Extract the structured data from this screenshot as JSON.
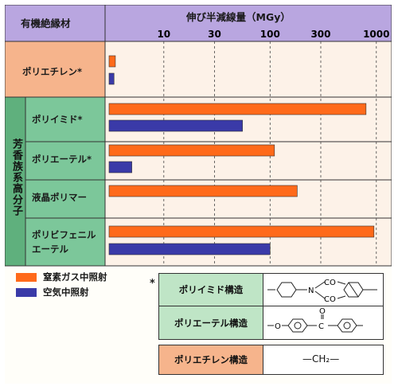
{
  "header": {
    "material_col": "有機絶縁材",
    "axis_title": "伸び半減線量（MGy）"
  },
  "group_label": "芳香族系高分子",
  "materials": [
    {
      "label": "ポリエチレン*"
    },
    {
      "label": "ポリイミド*"
    },
    {
      "label": "ポリエーテル*"
    },
    {
      "label": "液晶ポリマー"
    },
    {
      "label_lines": [
        "ポリビフェニル",
        "エーテル"
      ]
    }
  ],
  "legend": {
    "nitrogen": "窒素ガス中照射",
    "air": "空気中照射"
  },
  "footnote_mark": "*",
  "structures": [
    {
      "label": "ポリイミド構造",
      "formula_labels": [
        "N",
        "CO",
        "CO"
      ]
    },
    {
      "label": "ポリエーテル構造",
      "formula_labels": [
        "O",
        "C",
        "O"
      ]
    },
    {
      "label": "ポリエチレン構造",
      "formula": "—CH₂—"
    }
  ],
  "colors": {
    "nitrogen": "#ff6a1a",
    "air": "#3a3aa8",
    "header_bg": "#b9a6e0",
    "pe_bg": "#f6b48c",
    "aromatic_bg": "#7cc79a",
    "chart_bg": "#fdf2e8",
    "struct_pink": "#f6b48c",
    "struct_green": "#bfe5c6"
  },
  "chart_data": {
    "type": "bar",
    "orientation": "horizontal",
    "x_scale": "log",
    "xlim": [
      3,
      1300
    ],
    "x_ticks": [
      10,
      30,
      100,
      300,
      1000
    ],
    "x_tick_labels": [
      "10",
      "30",
      "100",
      "300",
      "1000"
    ],
    "xlabel": "伸び半減線量（MGy）",
    "categories": [
      "ポリエチレン*",
      "ポリイミド*",
      "ポリエーテル*",
      "液晶ポリマー",
      "ポリビフェニルエーテル"
    ],
    "series": [
      {
        "name": "窒素ガス中照射",
        "values": [
          3.5,
          800,
          110,
          180,
          950
        ]
      },
      {
        "name": "空気中照射",
        "values": [
          3.4,
          55,
          5,
          null,
          100
        ]
      }
    ],
    "grid": "dashed vertical at ticks"
  }
}
